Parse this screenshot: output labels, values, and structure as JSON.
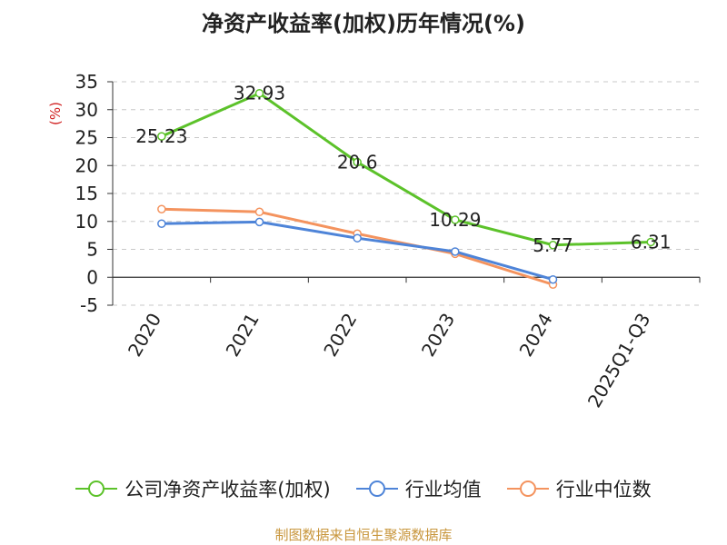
{
  "chart_data": {
    "type": "line",
    "title": "净资产收益率(加权)历年情况(%)",
    "ylabel": "(%)",
    "categories": [
      "2020",
      "2021",
      "2022",
      "2023",
      "2024",
      "2025Q1-Q3"
    ],
    "y_ticks": [
      "35",
      "30",
      "25",
      "20",
      "15",
      "10",
      "5",
      "0",
      "-5"
    ],
    "ylim": [
      -5,
      35
    ],
    "grid": true,
    "legend_position": "bottom",
    "series": [
      {
        "name": "公司净资产收益率(加权)",
        "color": "#5cc22a",
        "values": [
          25.23,
          32.93,
          20.6,
          10.29,
          5.77,
          6.31
        ],
        "labels": [
          "25.23",
          "32.93",
          "20.6",
          "10.29",
          "5.77",
          "6.31"
        ]
      },
      {
        "name": "行业均值",
        "color": "#4e84d8",
        "values": [
          9.6,
          9.9,
          7.0,
          4.6,
          -0.4,
          null
        ]
      },
      {
        "name": "行业中位数",
        "color": "#f4935e",
        "values": [
          12.2,
          11.7,
          7.8,
          4.2,
          -1.3,
          null
        ]
      }
    ]
  },
  "legend": {
    "items": [
      "公司净资产收益率(加权)",
      "行业均值",
      "行业中位数"
    ]
  },
  "footer": {
    "source": "制图数据来自恒生聚源数据库"
  }
}
